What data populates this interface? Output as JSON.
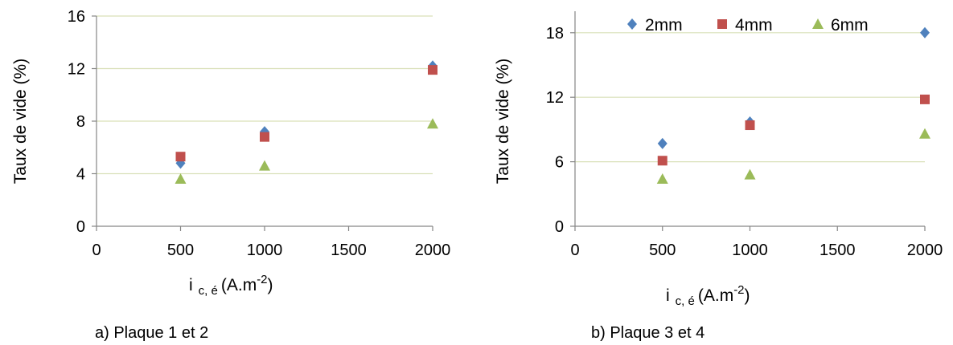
{
  "figure": {
    "captions": [
      "a) Plaque 1 et 2",
      "b) Plaque 3 et 4"
    ]
  },
  "legend": {
    "entries": [
      {
        "name": "2mm",
        "marker": "diamond",
        "color": "#4F81BD"
      },
      {
        "name": "4mm",
        "marker": "square",
        "color": "#C0504D"
      },
      {
        "name": "6mm",
        "marker": "triangle",
        "color": "#9BBB59"
      }
    ]
  },
  "chart_data": [
    {
      "type": "scatter",
      "caption": "a) Plaque 1 et 2",
      "xlabel": {
        "main": "i",
        "sub": "c, é",
        "unit_pre": "(A.m",
        "unit_sup": "-2",
        "unit_post": ")"
      },
      "ylabel": "Taux de vide (%)",
      "xlim": [
        0,
        2000
      ],
      "ylim": [
        0,
        16
      ],
      "xticks": [
        "0",
        "500",
        "1000",
        "1500",
        "2000"
      ],
      "yticks": [
        "0",
        "4",
        "8",
        "12",
        "16"
      ],
      "grid": "horizontal",
      "legend": "none",
      "series": [
        {
          "name": "2mm",
          "color": "#4F81BD",
          "marker": "diamond",
          "x": [
            500,
            1000,
            2000
          ],
          "y": [
            4.8,
            7.2,
            12.2
          ]
        },
        {
          "name": "4mm",
          "color": "#C0504D",
          "marker": "square",
          "x": [
            500,
            1000,
            2000
          ],
          "y": [
            5.3,
            6.8,
            11.9
          ]
        },
        {
          "name": "6mm",
          "color": "#9BBB59",
          "marker": "triangle",
          "x": [
            500,
            1000,
            2000
          ],
          "y": [
            3.6,
            4.6,
            7.8
          ]
        }
      ]
    },
    {
      "type": "scatter",
      "caption": "b) Plaque 3 et 4",
      "xlabel": {
        "main": "i",
        "sub": "c, é",
        "unit_pre": "(A.m",
        "unit_sup": "-2",
        "unit_post": ")"
      },
      "ylabel": "Taux de vide (%)",
      "xlim": [
        0,
        2000
      ],
      "ylim": [
        0,
        20
      ],
      "xticks": [
        "0",
        "500",
        "1000",
        "1500",
        "2000"
      ],
      "yticks": [
        "0",
        "6",
        "12",
        "18"
      ],
      "ytick_values": [
        0,
        6,
        12,
        18
      ],
      "grid": "horizontal",
      "legend": "top",
      "series": [
        {
          "name": "2mm",
          "color": "#4F81BD",
          "marker": "diamond",
          "x": [
            500,
            1000,
            2000
          ],
          "y": [
            7.7,
            9.7,
            18.0
          ]
        },
        {
          "name": "4mm",
          "color": "#C0504D",
          "marker": "square",
          "x": [
            500,
            1000,
            2000
          ],
          "y": [
            6.1,
            9.4,
            11.8
          ]
        },
        {
          "name": "6mm",
          "color": "#9BBB59",
          "marker": "triangle",
          "x": [
            500,
            1000,
            2000
          ],
          "y": [
            4.4,
            4.8,
            8.6
          ]
        }
      ]
    }
  ]
}
